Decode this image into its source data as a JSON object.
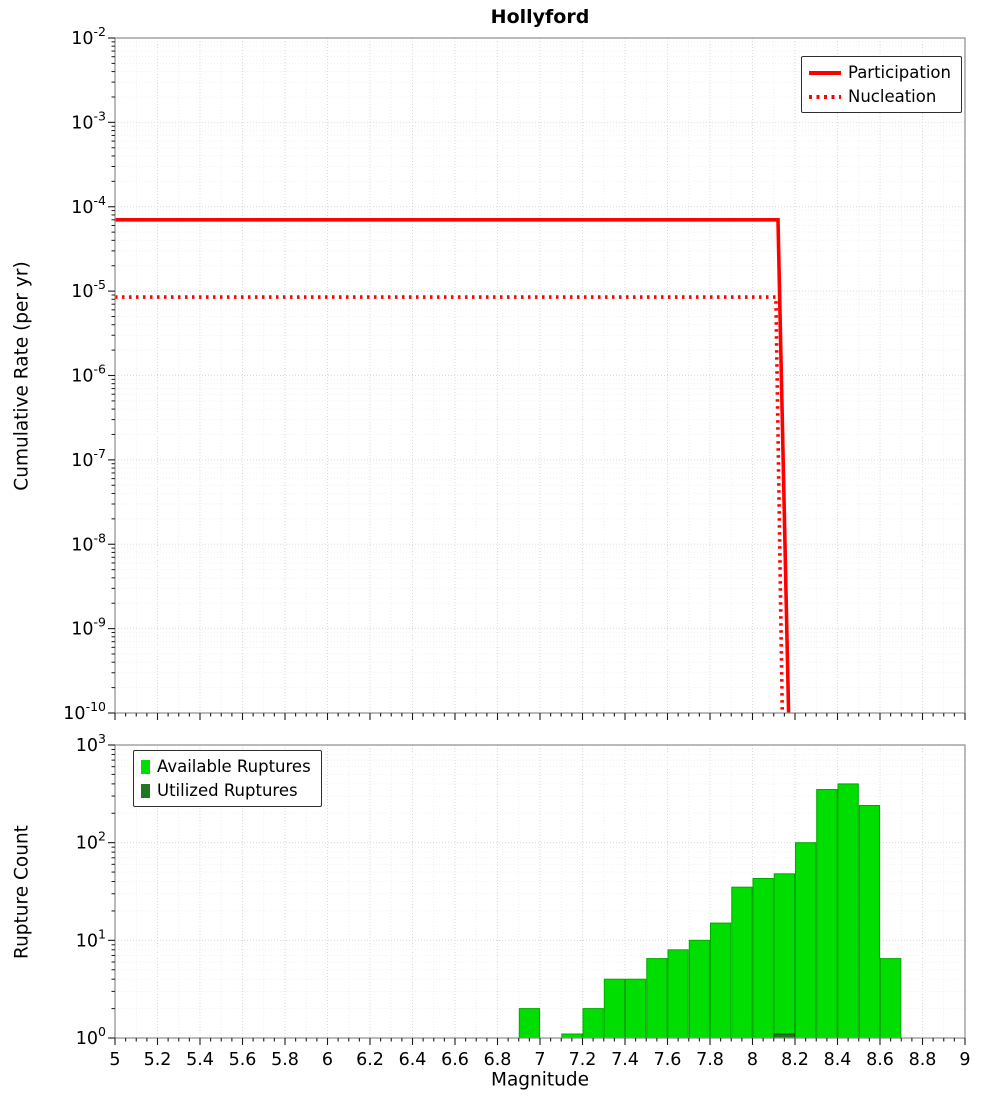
{
  "chart_data": [
    {
      "type": "line",
      "title": "Hollyford",
      "xlabel": "",
      "ylabel": "Cumulative Rate (per yr)",
      "xlim": [
        5,
        9
      ],
      "ylim": [
        1e-10,
        0.01
      ],
      "ylog": true,
      "grid": true,
      "legend_position": "top-right",
      "series": [
        {
          "name": "Participation",
          "line_style": "solid",
          "color": "#ff0000",
          "points": [
            [
              5.0,
              7e-05
            ],
            [
              8.12,
              7e-05
            ],
            [
              8.17,
              1e-10
            ]
          ]
        },
        {
          "name": "Nucleation",
          "line_style": "dotted",
          "color": "#ff0000",
          "points": [
            [
              5.0,
              8.5e-06
            ],
            [
              8.11,
              8.5e-06
            ],
            [
              8.14,
              1e-10
            ]
          ]
        }
      ]
    },
    {
      "type": "bar",
      "title": "",
      "xlabel": "Magnitude",
      "ylabel": "Rupture Count",
      "xlim": [
        5,
        9
      ],
      "ylim": [
        1,
        1000
      ],
      "ylog": true,
      "grid": true,
      "legend_position": "top-left",
      "bar_width": 0.1,
      "x_ticks": [
        5,
        5.2,
        5.4,
        5.6,
        5.8,
        6,
        6.2,
        6.4,
        6.6,
        6.8,
        7,
        7.2,
        7.4,
        7.6,
        7.8,
        8,
        8.2,
        8.4,
        8.6,
        8.8,
        9
      ],
      "series": [
        {
          "name": "Available Ruptures",
          "color": "#00dd00",
          "edge_color": "#00aa00",
          "x": [
            6.95,
            7.15,
            7.25,
            7.35,
            7.45,
            7.55,
            7.65,
            7.75,
            7.85,
            7.95,
            8.05,
            8.15,
            8.25,
            8.35,
            8.45,
            8.55,
            8.65
          ],
          "values": [
            2,
            1.1,
            2,
            4,
            4,
            6.5,
            8,
            10,
            15,
            35,
            43,
            48,
            100,
            350,
            400,
            240,
            6.5
          ]
        },
        {
          "name": "Utilized Ruptures",
          "color": "#217821",
          "edge_color": "#154d15",
          "x": [
            8.15
          ],
          "values": [
            1.1
          ]
        }
      ]
    }
  ]
}
